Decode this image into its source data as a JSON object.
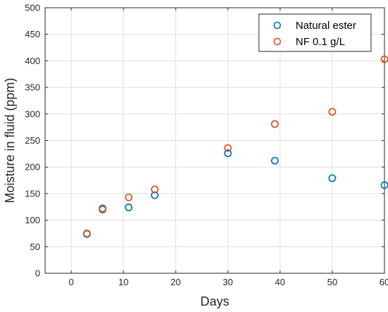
{
  "chart_data": {
    "type": "scatter",
    "title": "",
    "xlabel": "Days",
    "ylabel": "Moisture in fluid (ppm)",
    "xlim": [
      -5,
      60
    ],
    "ylim": [
      0,
      500
    ],
    "xticks": [
      0,
      10,
      20,
      30,
      40,
      50,
      60
    ],
    "yticks": [
      0,
      50,
      100,
      150,
      200,
      250,
      300,
      350,
      400,
      450,
      500
    ],
    "grid": true,
    "legend_position": "top-right",
    "series": [
      {
        "name": "Natural ester",
        "color": "#0072BD",
        "marker": "circle-open",
        "x": [
          3,
          6,
          11,
          16,
          30,
          39,
          50,
          60
        ],
        "y": [
          74,
          122,
          124,
          147,
          226,
          212,
          179,
          166
        ]
      },
      {
        "name": "NF 0.1 g/L",
        "color": "#D95319",
        "marker": "circle-open",
        "x": [
          3,
          6,
          11,
          16,
          30,
          39,
          50,
          60
        ],
        "y": [
          75,
          120,
          143,
          158,
          236,
          281,
          304,
          403
        ]
      }
    ]
  }
}
